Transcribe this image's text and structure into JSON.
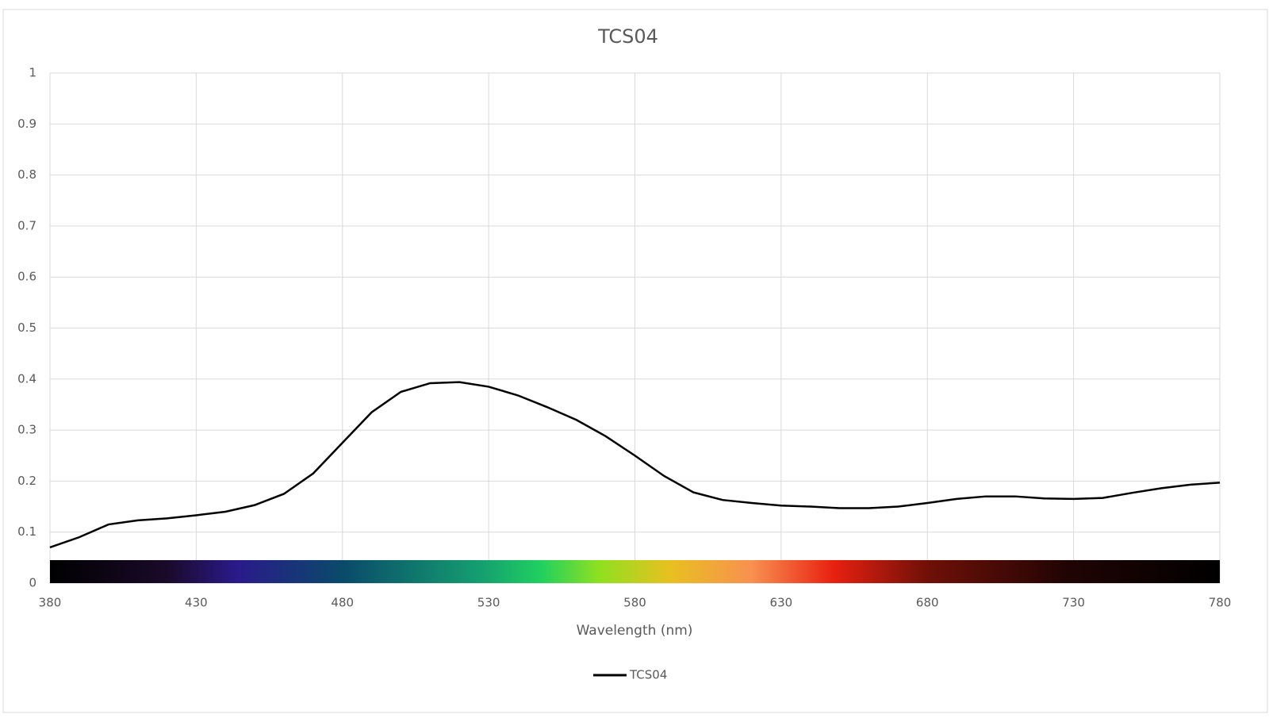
{
  "chart_data": {
    "type": "line",
    "title": "TCS04",
    "x_label": "Wavelength (nm)",
    "x": [
      380,
      390,
      400,
      410,
      420,
      430,
      440,
      450,
      460,
      470,
      480,
      490,
      500,
      510,
      520,
      530,
      540,
      550,
      560,
      570,
      580,
      590,
      600,
      610,
      620,
      630,
      640,
      650,
      660,
      670,
      680,
      690,
      700,
      710,
      720,
      730,
      740,
      750,
      760,
      770,
      780
    ],
    "series": [
      {
        "name": "TCS04",
        "color": "#000000",
        "values": [
          0.07,
          0.09,
          0.115,
          0.123,
          0.127,
          0.133,
          0.14,
          0.153,
          0.175,
          0.215,
          0.275,
          0.335,
          0.375,
          0.392,
          0.394,
          0.385,
          0.368,
          0.345,
          0.32,
          0.288,
          0.25,
          0.21,
          0.178,
          0.163,
          0.157,
          0.152,
          0.15,
          0.147,
          0.147,
          0.15,
          0.157,
          0.165,
          0.17,
          0.17,
          0.166,
          0.165,
          0.167,
          0.177,
          0.186,
          0.193,
          0.197
        ]
      }
    ],
    "xlim": [
      380,
      780
    ],
    "xticks": [
      380,
      430,
      480,
      530,
      580,
      630,
      680,
      730,
      780
    ],
    "ylim": [
      0,
      1
    ],
    "yticks": [
      0,
      0.1,
      0.2,
      0.3,
      0.4,
      0.5,
      0.6,
      0.7,
      0.8,
      0.9,
      1
    ],
    "grid": true,
    "legend": "bottom"
  }
}
